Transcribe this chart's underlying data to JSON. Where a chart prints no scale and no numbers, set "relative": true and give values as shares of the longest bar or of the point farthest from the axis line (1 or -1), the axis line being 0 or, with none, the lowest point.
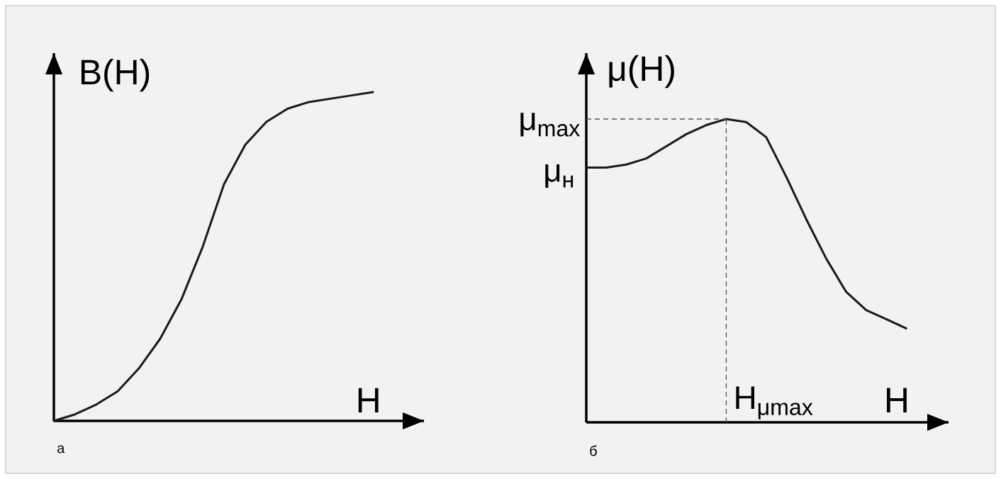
{
  "chart_data": [
    {
      "type": "line",
      "relative": true,
      "xlabel": "H",
      "ylabel": "B(H)",
      "color": "#1a1a1a",
      "categories": [
        null,
        null,
        null,
        null,
        null,
        null,
        null,
        null,
        null,
        null,
        null,
        null,
        null,
        null,
        null,
        null
      ],
      "values": [
        0,
        0.02,
        0.05,
        0.09,
        0.16,
        0.25,
        0.37,
        0.53,
        0.72,
        0.84,
        0.91,
        0.95,
        0.97,
        0.98,
        0.99,
        1
      ],
      "annotations": [
        "а"
      ]
    },
    {
      "type": "line",
      "relative": true,
      "xlabel": "H",
      "ylabel": "μ(H)",
      "color": "#1a1a1a",
      "categories": [
        null,
        null,
        null,
        null,
        null,
        null,
        null,
        null,
        null,
        null,
        null,
        null,
        null,
        null,
        null,
        null,
        null
      ],
      "values": [
        0.84,
        0.84,
        0.85,
        0.87,
        0.91,
        0.95,
        0.98,
        1,
        0.99,
        0.94,
        0.81,
        0.67,
        0.54,
        0.43,
        0.37,
        0.34,
        0.31
      ],
      "ref_lines": [
        {
          "axis": "y",
          "value": 1,
          "label": "μ$_{max}$",
          "color": "#555555",
          "line_style": "dashed"
        }
      ],
      "annotations": [
        "H$_{μmax}$",
        "μ$_{н}$",
        "б"
      ]
    }
  ]
}
